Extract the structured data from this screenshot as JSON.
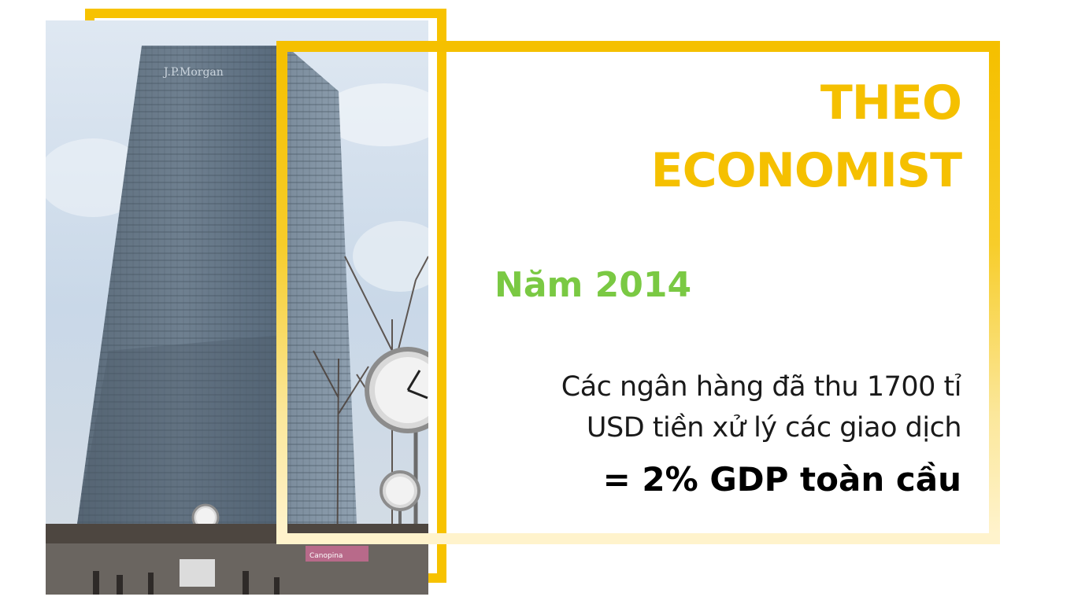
{
  "slide": {
    "title_line1": "THEO",
    "title_line2": "ECONOMIST",
    "year": "Năm 2014",
    "body_line1": "Các ngân hàng đã thu 1700 tỉ",
    "body_line2": "USD tiền xử lý các giao dịch",
    "highlight": "= 2% GDP toàn cầu"
  },
  "photo": {
    "building_sign": "J.P.Morgan",
    "shop_sign": "Canopina"
  },
  "colors": {
    "frame": "#f5c000",
    "title": "#f5c000",
    "year": "#7ac943",
    "body": "#1a1a1a",
    "highlight": "#000000"
  }
}
